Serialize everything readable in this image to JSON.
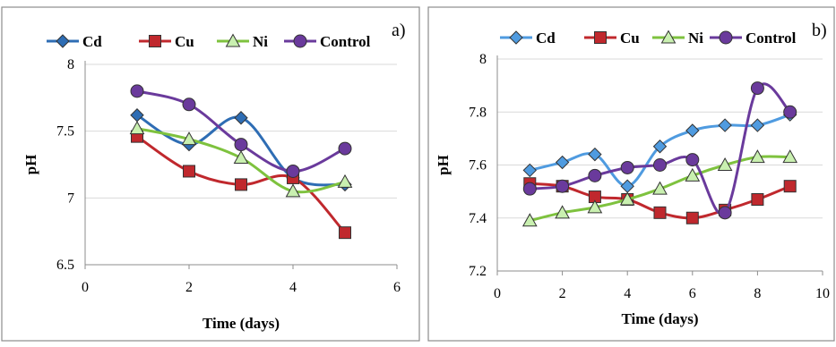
{
  "chart_data": [
    {
      "type": "line",
      "panel_label": "a)",
      "title": "",
      "xlabel": "Time (days)",
      "ylabel": "pH",
      "xlim": [
        0,
        6
      ],
      "ylim": [
        6.5,
        8
      ],
      "xticks": [
        "0",
        "2",
        "4",
        "6"
      ],
      "yticks": [
        "6.5",
        "7",
        "7.5",
        "8"
      ],
      "grid": "horizontal",
      "legend_position": "top",
      "series": [
        {
          "name": "Cd",
          "color": "#2e6db4",
          "marker": "diamond",
          "x": [
            1,
            2,
            3,
            4,
            5
          ],
          "y": [
            7.62,
            7.4,
            7.6,
            7.15,
            7.1
          ]
        },
        {
          "name": "Cu",
          "color": "#c0282d",
          "marker": "square",
          "x": [
            1,
            2,
            3,
            4,
            5
          ],
          "y": [
            7.46,
            7.2,
            7.1,
            7.15,
            6.74
          ]
        },
        {
          "name": "Ni",
          "color": "#7ec23e",
          "marker": "triangle",
          "x": [
            1,
            2,
            3,
            4,
            5
          ],
          "y": [
            7.52,
            7.44,
            7.3,
            7.05,
            7.12
          ]
        },
        {
          "name": "Control",
          "color": "#6a3a9c",
          "marker": "circle",
          "x": [
            1,
            2,
            3,
            4,
            5
          ],
          "y": [
            7.8,
            7.7,
            7.4,
            7.2,
            7.37
          ]
        }
      ]
    },
    {
      "type": "line",
      "panel_label": "b)",
      "title": "",
      "xlabel": "Time (days)",
      "ylabel": "pH",
      "xlim": [
        0,
        10
      ],
      "ylim": [
        7.2,
        8
      ],
      "xticks": [
        "0",
        "2",
        "4",
        "6",
        "8",
        "10"
      ],
      "yticks": [
        "7.2",
        "7.4",
        "7.6",
        "7.8",
        "8"
      ],
      "grid": "horizontal",
      "legend_position": "top",
      "series": [
        {
          "name": "Cd",
          "color": "#4f9be0",
          "marker": "diamond",
          "x": [
            1,
            2,
            3,
            4,
            5,
            6,
            7,
            8,
            9
          ],
          "y": [
            7.58,
            7.61,
            7.64,
            7.52,
            7.67,
            7.73,
            7.75,
            7.75,
            7.79
          ]
        },
        {
          "name": "Cu",
          "color": "#c0282d",
          "marker": "square",
          "x": [
            1,
            2,
            3,
            4,
            5,
            6,
            7,
            8,
            9
          ],
          "y": [
            7.53,
            7.52,
            7.48,
            7.47,
            7.42,
            7.4,
            7.43,
            7.47,
            7.52
          ]
        },
        {
          "name": "Ni",
          "color": "#7ec23e",
          "marker": "triangle",
          "x": [
            1,
            2,
            3,
            4,
            5,
            6,
            7,
            8,
            9
          ],
          "y": [
            7.39,
            7.42,
            7.44,
            7.47,
            7.51,
            7.56,
            7.6,
            7.63,
            7.63
          ]
        },
        {
          "name": "Control",
          "color": "#6a3a9c",
          "marker": "circle",
          "x": [
            1,
            2,
            3,
            4,
            5,
            6,
            7,
            8,
            9
          ],
          "y": [
            7.51,
            7.52,
            7.56,
            7.59,
            7.6,
            7.62,
            7.42,
            7.89,
            7.8
          ]
        }
      ]
    }
  ]
}
